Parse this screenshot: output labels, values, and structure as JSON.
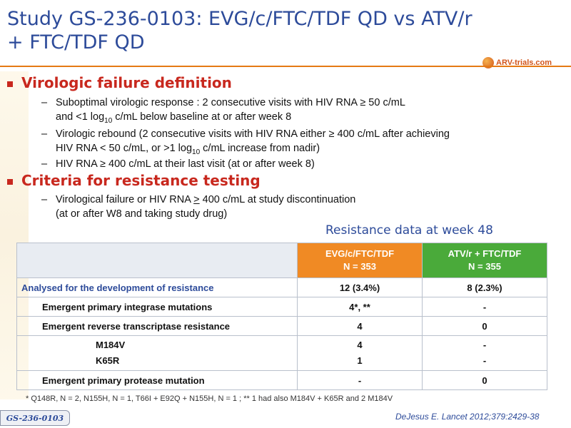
{
  "title": {
    "line1": "Study GS-236-0103: EVG/c/FTC/TDF QD vs ATV/r",
    "line2": "+ FTC/TDF QD"
  },
  "logo": {
    "text": "ARV-trials.com"
  },
  "section1": {
    "heading": "Virologic failure definition",
    "items": [
      {
        "line1": "Suboptimal virologic response : 2 consecutive visits with HIV RNA ≥ 50 c/mL",
        "line2_pre": "and <1 log",
        "line2_sub": "10",
        "line2_post": " c/mL below baseline at or after week 8"
      },
      {
        "line1": "Virologic rebound (2 consecutive visits with HIV RNA either ≥ 400 c/mL after achieving",
        "line2_pre": "HIV RNA < 50 c/mL, or >1 log",
        "line2_sub": "10",
        "line2_post": " c/mL increase from nadir)"
      },
      {
        "line1": "HIV RNA ≥ 400 c/mL at their last visit (at or after week 8)"
      }
    ]
  },
  "section2": {
    "heading": "Criteria for resistance testing",
    "item_line1_pre": "Virological failure or HIV RNA ",
    "item_line1_ge": ">",
    "item_line1_post": " 400 c/mL at study discontinuation",
    "item_line2": "(at or after W8 and taking study drug)"
  },
  "table_title": "Resistance data at week 48",
  "table": {
    "col1": {
      "name": "EVG/c/FTC/TDF",
      "n": "N = 353"
    },
    "col2": {
      "name": "ATV/r + FTC/TDF",
      "n": "N = 355"
    },
    "rows": [
      {
        "label": "Analysed for the development of resistance",
        "v1": "12 (3.4%)",
        "v2": "8 (2.3%)"
      },
      {
        "label": "Emergent  primary integrase mutations",
        "v1": "4*, **",
        "v2": "-"
      },
      {
        "label": "Emergent reverse transcriptase resistance",
        "v1": "4",
        "v2": "0"
      },
      {
        "label_a": "M184V",
        "label_b": "K65R",
        "v1a": "4",
        "v1b": "1",
        "v2a": "-",
        "v2b": "-"
      },
      {
        "label": "Emergent primary protease mutation",
        "v1": "-",
        "v2": "0"
      }
    ]
  },
  "footnote": "* Q148R, N = 2, N155H, N = 1, T66I + E92Q + N155H, N = 1 ; ** 1 had also M184V + K65R and 2 M184V",
  "reference": "DeJesus E. Lancet 2012;379:2429-38",
  "study_tag": "GS-236-0103",
  "colors": {
    "title": "#2d4b9a",
    "accent": "#c8281e",
    "orange": "#f08a24",
    "green": "#4aaa3a"
  }
}
